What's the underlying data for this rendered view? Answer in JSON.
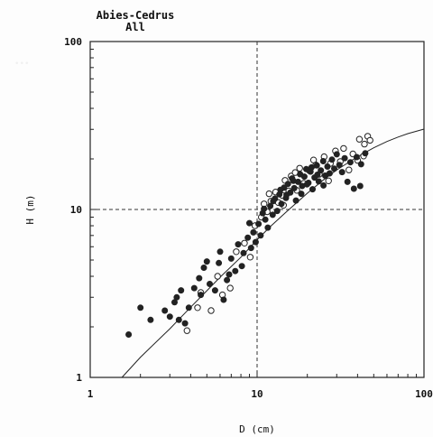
{
  "chart_data": {
    "type": "scatter",
    "title": "Abies-Cedrus",
    "subtitle": "All",
    "xlabel": "D (cm)",
    "ylabel": "H (m)",
    "xscale": "log",
    "yscale": "log",
    "xlim": [
      1,
      100
    ],
    "ylim": [
      1,
      100
    ],
    "xticks": [
      "1",
      "10",
      "100"
    ],
    "yticks": [
      "1",
      "10",
      "100"
    ],
    "reference_lines": {
      "x": 10,
      "y": 10,
      "style": "dashed"
    },
    "colors": {
      "filled": "#222222",
      "open_stroke": "#222222",
      "open_fill": "#ffffff",
      "curve": "#222222"
    },
    "series": [
      {
        "marker": "filled-circle",
        "points": [
          [
            1.7,
            1.8
          ],
          [
            2.3,
            2.2
          ],
          [
            2.8,
            2.5
          ],
          [
            3.0,
            2.3
          ],
          [
            3.2,
            2.8
          ],
          [
            3.4,
            2.2
          ],
          [
            3.5,
            3.3
          ],
          [
            3.7,
            2.1
          ],
          [
            3.9,
            2.6
          ],
          [
            4.2,
            3.4
          ],
          [
            4.5,
            3.9
          ],
          [
            4.8,
            4.5
          ],
          [
            5.2,
            3.6
          ],
          [
            5.6,
            3.3
          ],
          [
            5.9,
            4.8
          ],
          [
            6.3,
            2.9
          ],
          [
            6.6,
            3.8
          ],
          [
            6.8,
            4.1
          ],
          [
            7.0,
            5.1
          ],
          [
            7.4,
            4.3
          ],
          [
            7.7,
            6.2
          ],
          [
            8.1,
            4.6
          ],
          [
            8.3,
            5.5
          ],
          [
            8.8,
            6.8
          ],
          [
            9.2,
            5.9
          ],
          [
            9.5,
            7.3
          ],
          [
            9.8,
            6.4
          ],
          [
            10.2,
            8.2
          ],
          [
            10.5,
            7.0
          ],
          [
            10.8,
            9.5
          ],
          [
            11.2,
            8.7
          ],
          [
            11.6,
            7.8
          ],
          [
            12.0,
            10.5
          ],
          [
            12.4,
            9.3
          ],
          [
            12.8,
            11.6
          ],
          [
            13.2,
            9.8
          ],
          [
            13.6,
            12.3
          ],
          [
            14.0,
            10.8
          ],
          [
            14.5,
            13.5
          ],
          [
            14.9,
            11.7
          ],
          [
            15.3,
            14.2
          ],
          [
            15.8,
            12.6
          ],
          [
            16.2,
            15.3
          ],
          [
            16.7,
            13.4
          ],
          [
            17.1,
            11.3
          ],
          [
            17.6,
            14.6
          ],
          [
            18.1,
            16.2
          ],
          [
            18.6,
            13.8
          ],
          [
            19.2,
            15.7
          ],
          [
            19.7,
            17.4
          ],
          [
            20.3,
            14.4
          ],
          [
            20.9,
            16.8
          ],
          [
            21.5,
            13.2
          ],
          [
            22.1,
            15.5
          ],
          [
            22.8,
            18.3
          ],
          [
            23.4,
            14.7
          ],
          [
            24.1,
            17.1
          ],
          [
            24.9,
            19.4
          ],
          [
            25.6,
            15.9
          ],
          [
            26.4,
            18.0
          ],
          [
            27.2,
            16.4
          ],
          [
            28.1,
            19.8
          ],
          [
            29.0,
            17.5
          ],
          [
            30.0,
            21.3
          ],
          [
            31.1,
            18.4
          ],
          [
            32.3,
            16.7
          ],
          [
            33.5,
            20.2
          ],
          [
            34.8,
            14.6
          ],
          [
            36.2,
            19.1
          ],
          [
            38.0,
            13.3
          ],
          [
            39.5,
            20.5
          ],
          [
            41.5,
            13.8
          ],
          [
            42.0,
            18.6
          ],
          [
            44.5,
            21.6
          ],
          [
            12.5,
            11.2
          ],
          [
            13.8,
            13.1
          ],
          [
            15.0,
            12.2
          ],
          [
            16.5,
            14.8
          ],
          [
            18.4,
            12.4
          ],
          [
            19.9,
            14.1
          ],
          [
            21.2,
            17.8
          ],
          [
            23.0,
            16.1
          ],
          [
            9.0,
            8.3
          ],
          [
            11.0,
            10.1
          ],
          [
            6.0,
            5.6
          ],
          [
            5.0,
            4.9
          ],
          [
            4.6,
            3.1
          ],
          [
            3.3,
            3.0
          ],
          [
            2.0,
            2.6
          ],
          [
            25.0,
            13.9
          ]
        ]
      },
      {
        "marker": "open-circle",
        "points": [
          [
            3.8,
            1.9
          ],
          [
            4.4,
            2.6
          ],
          [
            4.6,
            3.2
          ],
          [
            5.3,
            2.5
          ],
          [
            5.8,
            4.0
          ],
          [
            6.2,
            3.1
          ],
          [
            6.9,
            3.4
          ],
          [
            7.5,
            5.6
          ],
          [
            8.4,
            6.3
          ],
          [
            9.1,
            5.2
          ],
          [
            9.7,
            8.0
          ],
          [
            10.6,
            9.0
          ],
          [
            11.0,
            10.8
          ],
          [
            11.5,
            9.7
          ],
          [
            12.1,
            11.2
          ],
          [
            12.9,
            12.7
          ],
          [
            13.4,
            11.0
          ],
          [
            14.2,
            12.1
          ],
          [
            14.7,
            14.9
          ],
          [
            15.5,
            12.9
          ],
          [
            16.0,
            15.8
          ],
          [
            17.3,
            13.0
          ],
          [
            18.0,
            17.6
          ],
          [
            19.0,
            14.3
          ],
          [
            20.5,
            17.1
          ],
          [
            21.8,
            19.7
          ],
          [
            23.6,
            16.2
          ],
          [
            25.2,
            20.6
          ],
          [
            27.5,
            18.8
          ],
          [
            29.5,
            22.3
          ],
          [
            31.5,
            19.3
          ],
          [
            33.0,
            23.1
          ],
          [
            35.5,
            17.2
          ],
          [
            37.5,
            21.4
          ],
          [
            40.0,
            19.6
          ],
          [
            41.0,
            26.2
          ],
          [
            44.0,
            24.5
          ],
          [
            46.0,
            27.3
          ],
          [
            47.5,
            25.8
          ],
          [
            43.5,
            20.8
          ],
          [
            11.8,
            12.4
          ],
          [
            14.4,
            10.6
          ],
          [
            16.9,
            16.6
          ],
          [
            22.5,
            18.4
          ],
          [
            26.8,
            14.8
          ]
        ]
      }
    ],
    "curve": {
      "type": "line",
      "description": "fitted",
      "points": [
        [
          1.55,
          1.0
        ],
        [
          2,
          1.32
        ],
        [
          3,
          1.95
        ],
        [
          4,
          2.62
        ],
        [
          5,
          3.28
        ],
        [
          6,
          3.95
        ],
        [
          8,
          5.2
        ],
        [
          10,
          6.6
        ],
        [
          12,
          7.9
        ],
        [
          15,
          9.7
        ],
        [
          20,
          12.5
        ],
        [
          25,
          15.0
        ],
        [
          30,
          17.2
        ],
        [
          40,
          20.6
        ],
        [
          50,
          23.3
        ],
        [
          60,
          25.4
        ],
        [
          70,
          27.0
        ],
        [
          80,
          28.3
        ],
        [
          100,
          30.1
        ]
      ]
    }
  },
  "background_text": "..."
}
